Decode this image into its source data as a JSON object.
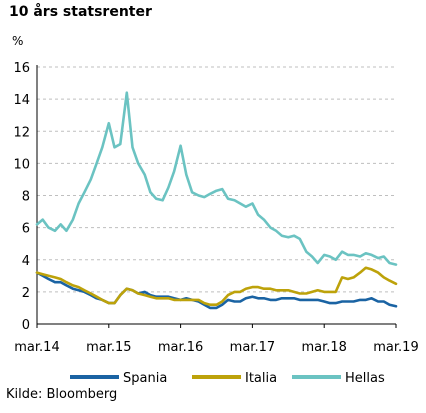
{
  "title": "10 års statsrenter",
  "unit_label": "%",
  "source": "Kilde: Bloomberg",
  "colors": {
    "Spania": "#1a63a3",
    "Italia": "#bda20a",
    "Hellas": "#6bc3c2",
    "grid": "#bfbfbf",
    "axis": "#000000"
  },
  "chart_data": {
    "type": "line",
    "title": "10 års statsrenter",
    "ylabel": "%",
    "xlabel": "",
    "xlim": [
      2014.17,
      2019.17
    ],
    "ylim": [
      0,
      16
    ],
    "grid": true,
    "legend_position": "bottom",
    "x_ticks": [
      {
        "x": 2014.17,
        "label": "mar.14"
      },
      {
        "x": 2015.17,
        "label": "mar.15"
      },
      {
        "x": 2016.17,
        "label": "mar.16"
      },
      {
        "x": 2017.17,
        "label": "mar.17"
      },
      {
        "x": 2018.17,
        "label": "mar.18"
      },
      {
        "x": 2019.17,
        "label": "mar.19"
      }
    ],
    "y_ticks": [
      0,
      2,
      4,
      6,
      8,
      10,
      12,
      14,
      16
    ],
    "series": [
      {
        "name": "Spania",
        "x": [
          2014.17,
          2014.25,
          2014.33,
          2014.42,
          2014.5,
          2014.58,
          2014.67,
          2014.75,
          2014.83,
          2014.92,
          2015.0,
          2015.08,
          2015.17,
          2015.25,
          2015.33,
          2015.42,
          2015.5,
          2015.58,
          2015.67,
          2015.75,
          2015.83,
          2015.92,
          2016.0,
          2016.08,
          2016.17,
          2016.25,
          2016.33,
          2016.42,
          2016.5,
          2016.58,
          2016.67,
          2016.75,
          2016.83,
          2016.92,
          2017.0,
          2017.08,
          2017.17,
          2017.25,
          2017.33,
          2017.42,
          2017.5,
          2017.58,
          2017.67,
          2017.75,
          2017.83,
          2017.92,
          2018.0,
          2018.08,
          2018.17,
          2018.25,
          2018.33,
          2018.42,
          2018.5,
          2018.58,
          2018.67,
          2018.75,
          2018.83,
          2018.92,
          2019.0,
          2019.08,
          2019.17
        ],
        "values": [
          3.2,
          3.0,
          2.8,
          2.6,
          2.6,
          2.4,
          2.2,
          2.1,
          2.0,
          1.8,
          1.6,
          1.5,
          1.3,
          1.3,
          1.8,
          2.2,
          2.1,
          1.9,
          2.0,
          1.8,
          1.7,
          1.7,
          1.7,
          1.6,
          1.5,
          1.6,
          1.5,
          1.4,
          1.2,
          1.0,
          1.0,
          1.2,
          1.5,
          1.4,
          1.4,
          1.6,
          1.7,
          1.6,
          1.6,
          1.5,
          1.5,
          1.6,
          1.6,
          1.6,
          1.5,
          1.5,
          1.5,
          1.5,
          1.4,
          1.3,
          1.3,
          1.4,
          1.4,
          1.4,
          1.5,
          1.5,
          1.6,
          1.4,
          1.4,
          1.2,
          1.1
        ]
      },
      {
        "name": "Italia",
        "x": [
          2014.17,
          2014.25,
          2014.33,
          2014.42,
          2014.5,
          2014.58,
          2014.67,
          2014.75,
          2014.83,
          2014.92,
          2015.0,
          2015.08,
          2015.17,
          2015.25,
          2015.33,
          2015.42,
          2015.5,
          2015.58,
          2015.67,
          2015.75,
          2015.83,
          2015.92,
          2016.0,
          2016.08,
          2016.17,
          2016.25,
          2016.33,
          2016.42,
          2016.5,
          2016.58,
          2016.67,
          2016.75,
          2016.83,
          2016.92,
          2017.0,
          2017.08,
          2017.17,
          2017.25,
          2017.33,
          2017.42,
          2017.5,
          2017.58,
          2017.67,
          2017.75,
          2017.83,
          2017.92,
          2018.0,
          2018.08,
          2018.17,
          2018.25,
          2018.33,
          2018.42,
          2018.5,
          2018.58,
          2018.67,
          2018.75,
          2018.83,
          2018.92,
          2019.0,
          2019.08,
          2019.17
        ],
        "values": [
          3.2,
          3.1,
          3.0,
          2.9,
          2.8,
          2.6,
          2.4,
          2.3,
          2.1,
          1.9,
          1.7,
          1.5,
          1.3,
          1.3,
          1.8,
          2.2,
          2.1,
          1.9,
          1.8,
          1.7,
          1.6,
          1.6,
          1.6,
          1.5,
          1.5,
          1.5,
          1.5,
          1.5,
          1.3,
          1.2,
          1.2,
          1.4,
          1.8,
          2.0,
          2.0,
          2.2,
          2.3,
          2.3,
          2.2,
          2.2,
          2.1,
          2.1,
          2.1,
          2.0,
          1.9,
          1.9,
          2.0,
          2.1,
          2.0,
          2.0,
          2.0,
          2.9,
          2.8,
          2.9,
          3.2,
          3.5,
          3.4,
          3.2,
          2.9,
          2.7,
          2.5
        ]
      },
      {
        "name": "Hellas",
        "x": [
          2014.17,
          2014.25,
          2014.33,
          2014.42,
          2014.5,
          2014.58,
          2014.67,
          2014.75,
          2014.83,
          2014.92,
          2015.0,
          2015.08,
          2015.17,
          2015.25,
          2015.33,
          2015.42,
          2015.5,
          2015.58,
          2015.67,
          2015.75,
          2015.83,
          2015.92,
          2016.0,
          2016.08,
          2016.17,
          2016.25,
          2016.33,
          2016.42,
          2016.5,
          2016.58,
          2016.67,
          2016.75,
          2016.83,
          2016.92,
          2017.0,
          2017.08,
          2017.17,
          2017.25,
          2017.33,
          2017.42,
          2017.5,
          2017.58,
          2017.67,
          2017.75,
          2017.83,
          2017.92,
          2018.0,
          2018.08,
          2018.17,
          2018.25,
          2018.33,
          2018.42,
          2018.5,
          2018.58,
          2018.67,
          2018.75,
          2018.83,
          2018.92,
          2019.0,
          2019.08,
          2019.17
        ],
        "values": [
          6.2,
          6.5,
          6.0,
          5.8,
          6.2,
          5.8,
          6.5,
          7.5,
          8.2,
          9.0,
          10.0,
          11.0,
          12.5,
          11.0,
          11.2,
          14.4,
          11.0,
          10.0,
          9.3,
          8.2,
          7.8,
          7.7,
          8.5,
          9.5,
          11.1,
          9.3,
          8.2,
          8.0,
          7.9,
          8.1,
          8.3,
          8.4,
          7.8,
          7.7,
          7.5,
          7.3,
          7.5,
          6.8,
          6.5,
          6.0,
          5.8,
          5.5,
          5.4,
          5.5,
          5.3,
          4.5,
          4.2,
          3.8,
          4.3,
          4.2,
          4.0,
          4.5,
          4.3,
          4.3,
          4.2,
          4.4,
          4.3,
          4.1,
          4.2,
          3.8,
          3.7
        ]
      }
    ]
  }
}
